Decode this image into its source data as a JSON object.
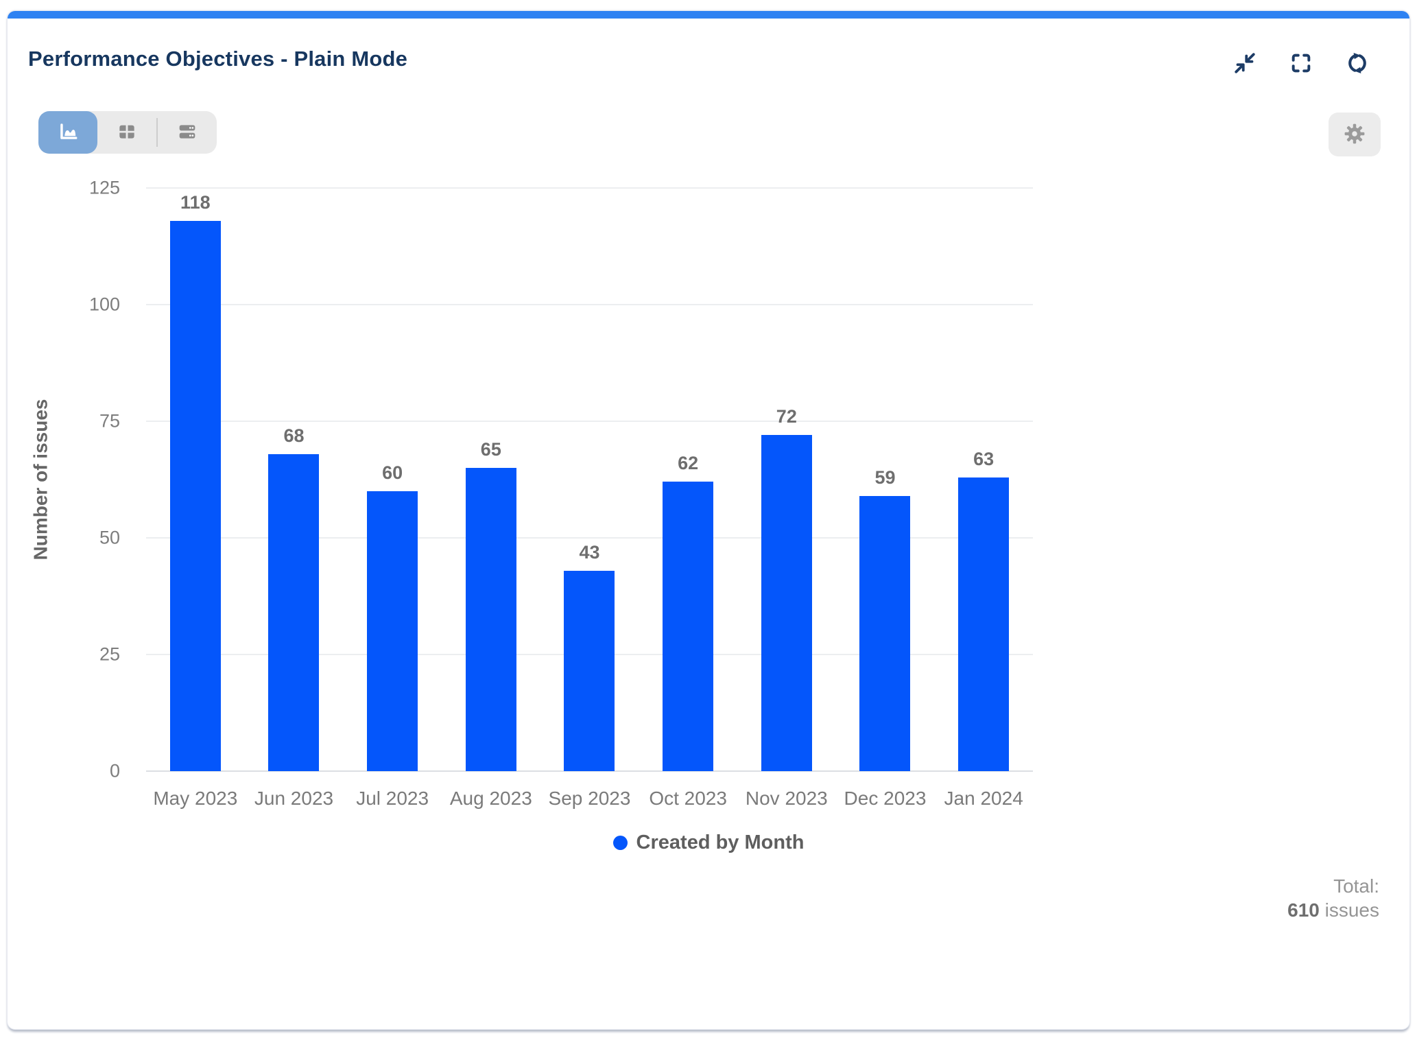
{
  "card": {
    "title": "Performance Objectives - Plain Mode",
    "accent_color": "#2e82f2",
    "header_icon_color": "#1d3c66",
    "header_icons": [
      "collapse-icon",
      "fullscreen-icon",
      "refresh-icon"
    ]
  },
  "toolbar": {
    "views": [
      {
        "name": "chart-view",
        "icon": "area-chart-icon",
        "active": true
      },
      {
        "name": "table-view",
        "icon": "table-grid-icon",
        "active": false
      },
      {
        "name": "list-view",
        "icon": "rows-icon",
        "active": false
      }
    ],
    "active_view_color": "#7da8d8",
    "settings_icon": "gear-icon"
  },
  "chart_data": {
    "type": "bar",
    "title": "",
    "categories": [
      "May 2023",
      "Jun 2023",
      "Jul 2023",
      "Aug 2023",
      "Sep 2023",
      "Oct 2023",
      "Nov 2023",
      "Dec 2023",
      "Jan 2024"
    ],
    "values": [
      118,
      68,
      60,
      65,
      43,
      62,
      72,
      59,
      63
    ],
    "series_name": "Created by Month",
    "xlabel": "",
    "ylabel": "Number of issues",
    "ylim": [
      0,
      125
    ],
    "yticks": [
      0,
      25,
      50,
      75,
      100,
      125
    ],
    "bar_color": "#0456fb",
    "grid": true,
    "value_labels": true,
    "legend_position": "bottom"
  },
  "legend": {
    "label": "Created by Month",
    "dot_color": "#0456fb"
  },
  "summary": {
    "total_label": "Total:",
    "total_value": "610",
    "total_unit": "issues"
  }
}
